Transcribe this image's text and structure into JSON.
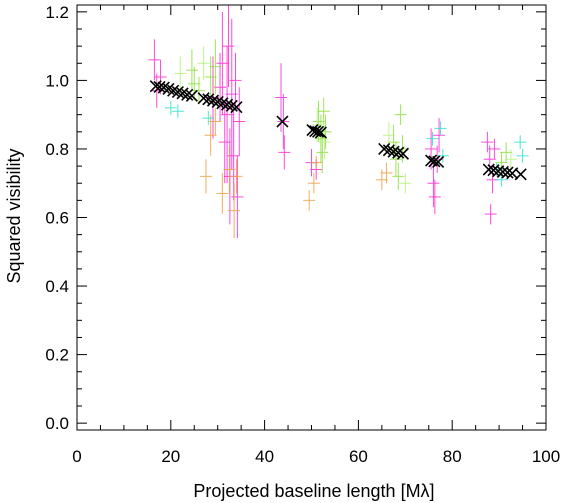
{
  "chart_data": {
    "type": "scatter",
    "title": "",
    "xlabel": "Projected baseline length [Mλ]",
    "ylabel": "Squared visibility",
    "xlim": [
      0,
      100
    ],
    "ylim": [
      -0.02,
      1.22
    ],
    "x_ticks": [
      0,
      20,
      40,
      60,
      80,
      100
    ],
    "y_ticks": [
      0.0,
      0.2,
      0.4,
      0.6,
      0.8,
      1.0,
      1.2
    ],
    "x_tick_labels": [
      "0",
      "20",
      "40",
      "60",
      "80",
      "100"
    ],
    "y_tick_labels": [
      "0.0",
      "0.2",
      "0.4",
      "0.6",
      "0.8",
      "1.0",
      "1.2"
    ],
    "grid": false,
    "legend": "none",
    "marker_colors": {
      "magenta": "#ff2bd6",
      "green": "#8be03a",
      "light_green": "#b6f07a",
      "orange": "#f0a040",
      "cyan": "#2ee0d0",
      "model": "#000000"
    },
    "series": [
      {
        "marker": "plus-errorbar",
        "color": "magenta",
        "points": [
          [
            16.5,
            1.06,
            0.06
          ],
          [
            17.0,
            0.97,
            0.05
          ],
          [
            17.8,
            1.01,
            0.05
          ],
          [
            29.0,
            0.95,
            0.12
          ],
          [
            30.5,
            0.98,
            0.1
          ],
          [
            31.0,
            1.05,
            0.15
          ],
          [
            31.5,
            0.82,
            0.12
          ],
          [
            32.0,
            0.9,
            0.2
          ],
          [
            32.3,
            1.1,
            0.12
          ],
          [
            32.6,
            0.72,
            0.14
          ],
          [
            33.0,
            0.96,
            0.22
          ],
          [
            33.4,
            0.78,
            0.13
          ],
          [
            33.8,
            1.0,
            0.08
          ],
          [
            34.2,
            0.66,
            0.12
          ],
          [
            34.6,
            0.88,
            0.1
          ],
          [
            43.5,
            0.95,
            0.1
          ],
          [
            44.0,
            0.88,
            0.08
          ],
          [
            44.2,
            0.79,
            0.05
          ],
          [
            50.0,
            0.76,
            0.04
          ],
          [
            51.0,
            0.74,
            0.03
          ],
          [
            75.5,
            0.8,
            0.06
          ],
          [
            76.0,
            0.7,
            0.07
          ],
          [
            76.3,
            0.66,
            0.05
          ],
          [
            76.8,
            0.77,
            0.04
          ],
          [
            77.2,
            0.84,
            0.05
          ],
          [
            87.5,
            0.82,
            0.03
          ],
          [
            88.0,
            0.77,
            0.04
          ],
          [
            88.2,
            0.61,
            0.03
          ],
          [
            88.6,
            0.71,
            0.04
          ],
          [
            89.0,
            0.8,
            0.03
          ]
        ]
      },
      {
        "marker": "plus-errorbar",
        "color": "green",
        "points": [
          [
            24.5,
            1.03,
            0.06
          ],
          [
            25.0,
            0.99,
            0.05
          ],
          [
            26.0,
            0.97,
            0.04
          ],
          [
            28.5,
            1.01,
            0.06
          ],
          [
            29.5,
            1.04,
            0.08
          ],
          [
            51.5,
            0.88,
            0.06
          ],
          [
            52.0,
            0.83,
            0.07
          ],
          [
            52.3,
            0.79,
            0.06
          ],
          [
            52.6,
            0.91,
            0.04
          ],
          [
            53.0,
            0.85,
            0.05
          ],
          [
            67.5,
            0.82,
            0.05
          ],
          [
            68.0,
            0.77,
            0.05
          ],
          [
            68.5,
            0.72,
            0.04
          ],
          [
            69.0,
            0.9,
            0.03
          ],
          [
            69.4,
            0.8,
            0.04
          ],
          [
            90.5,
            0.76,
            0.03
          ],
          [
            91.5,
            0.79,
            0.03
          ]
        ]
      },
      {
        "marker": "plus-errorbar",
        "color": "light_green",
        "points": [
          [
            22.0,
            1.02,
            0.05
          ],
          [
            27.0,
            1.05,
            0.05
          ],
          [
            51.2,
            0.87,
            0.05
          ],
          [
            52.8,
            0.82,
            0.05
          ],
          [
            66.5,
            0.84,
            0.04
          ],
          [
            70.0,
            0.7,
            0.03
          ],
          [
            92.5,
            0.77,
            0.03
          ]
        ]
      },
      {
        "marker": "plus-errorbar",
        "color": "orange",
        "points": [
          [
            27.5,
            0.72,
            0.05
          ],
          [
            28.5,
            0.84,
            0.06
          ],
          [
            29.5,
            0.88,
            0.04
          ],
          [
            31.0,
            0.67,
            0.06
          ],
          [
            32.5,
            0.74,
            0.07
          ],
          [
            33.5,
            0.62,
            0.08
          ],
          [
            34.0,
            0.72,
            0.05
          ],
          [
            49.5,
            0.65,
            0.03
          ],
          [
            50.5,
            0.7,
            0.03
          ],
          [
            51.0,
            0.76,
            0.02
          ],
          [
            65.0,
            0.71,
            0.03
          ],
          [
            66.0,
            0.73,
            0.03
          ]
        ]
      },
      {
        "marker": "plus-errorbar",
        "color": "cyan",
        "points": [
          [
            20.0,
            0.92,
            0.02
          ],
          [
            21.5,
            0.91,
            0.02
          ],
          [
            28.0,
            0.89,
            0.02
          ],
          [
            75.8,
            0.83,
            0.02
          ],
          [
            77.5,
            0.86,
            0.02
          ],
          [
            78.0,
            0.78,
            0.02
          ],
          [
            89.5,
            0.74,
            0.02
          ],
          [
            90.5,
            0.71,
            0.02
          ],
          [
            94.5,
            0.82,
            0.02
          ],
          [
            95.0,
            0.78,
            0.02
          ]
        ]
      },
      {
        "marker": "x",
        "color": "model",
        "points": [
          [
            16.8,
            0.983
          ],
          [
            17.6,
            0.981
          ],
          [
            18.5,
            0.979
          ],
          [
            19.5,
            0.975
          ],
          [
            20.5,
            0.97
          ],
          [
            21.5,
            0.966
          ],
          [
            22.5,
            0.962
          ],
          [
            23.5,
            0.958
          ],
          [
            24.5,
            0.955
          ],
          [
            27.0,
            0.948
          ],
          [
            28.0,
            0.945
          ],
          [
            29.0,
            0.941
          ],
          [
            30.0,
            0.937
          ],
          [
            31.0,
            0.933
          ],
          [
            32.0,
            0.929
          ],
          [
            33.0,
            0.926
          ],
          [
            34.0,
            0.922
          ],
          [
            43.8,
            0.88
          ],
          [
            50.2,
            0.855
          ],
          [
            50.8,
            0.852
          ],
          [
            51.4,
            0.85
          ],
          [
            52.0,
            0.848
          ],
          [
            65.5,
            0.8
          ],
          [
            66.5,
            0.796
          ],
          [
            67.5,
            0.792
          ],
          [
            68.5,
            0.789
          ],
          [
            69.5,
            0.786
          ],
          [
            75.5,
            0.766
          ],
          [
            76.2,
            0.764
          ],
          [
            77.0,
            0.762
          ],
          [
            87.8,
            0.74
          ],
          [
            88.8,
            0.738
          ],
          [
            89.8,
            0.735
          ],
          [
            90.8,
            0.733
          ],
          [
            91.8,
            0.731
          ],
          [
            92.8,
            0.729
          ],
          [
            94.6,
            0.726
          ]
        ]
      }
    ]
  }
}
